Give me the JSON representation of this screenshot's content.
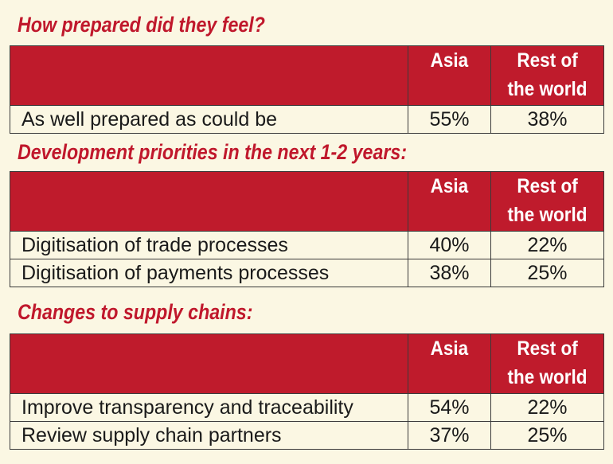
{
  "sections": [
    {
      "title": "How prepared did they feel?",
      "columns": [
        "",
        "Asia",
        "Rest of\nthe world"
      ],
      "rows": [
        {
          "label": "As well prepared as could be",
          "asia": "55%",
          "rest": "38%"
        }
      ]
    },
    {
      "title": "Development priorities in the next 1-2 years:",
      "columns": [
        "",
        "Asia",
        "Rest of\nthe world"
      ],
      "rows": [
        {
          "label": "Digitisation of trade processes",
          "asia": "40%",
          "rest": "22%"
        },
        {
          "label": "Digitisation of payments processes",
          "asia": "38%",
          "rest": "25%"
        }
      ]
    },
    {
      "title": "Changes to supply chains:",
      "columns": [
        "",
        "Asia",
        "Rest of\nthe world"
      ],
      "rows": [
        {
          "label": "Improve transparency and traceability",
          "asia": "54%",
          "rest": "22%"
        },
        {
          "label": "Review supply chain partners",
          "asia": "37%",
          "rest": "25%"
        }
      ]
    }
  ],
  "colors": {
    "accent": "#c0182c",
    "header_bg": "#bf1b2c",
    "page_bg": "#fbf7e3",
    "text": "#1a1a1a"
  }
}
